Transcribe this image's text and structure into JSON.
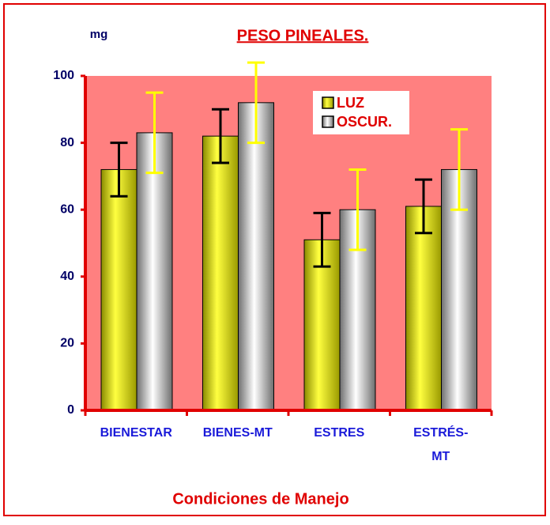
{
  "chart_data": {
    "type": "bar",
    "title": "PESO PINEALES.",
    "y_label": "mg",
    "x_label": "Condiciones de Manejo",
    "categories": [
      "BIENESTAR",
      "BIENES-MT",
      "ESTRES",
      "ESTRÉS-\nMT"
    ],
    "series": [
      {
        "name": "LUZ",
        "color": "#e6e600",
        "error_color": "#000000",
        "values": [
          72,
          82,
          51,
          61
        ],
        "errors": [
          8,
          8,
          8,
          8
        ]
      },
      {
        "name": "OSCUR.",
        "color": "#d8d8d8",
        "error_color": "#ffff00",
        "values": [
          83,
          92,
          60,
          72
        ],
        "errors": [
          12,
          12,
          12,
          12
        ]
      }
    ],
    "ylim": [
      0,
      100
    ],
    "yticks": [
      0,
      20,
      40,
      60,
      80,
      100
    ],
    "legend": "top-right"
  }
}
